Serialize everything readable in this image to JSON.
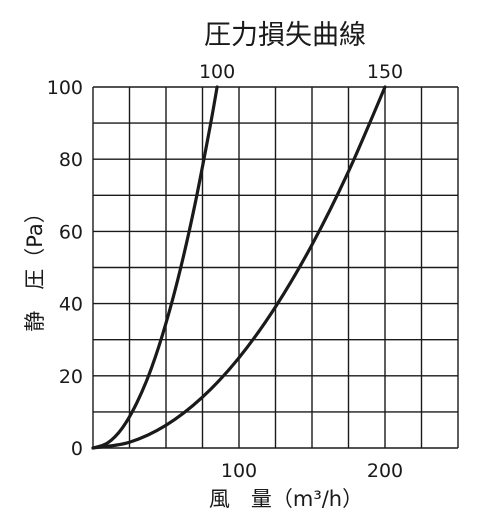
{
  "chart_data": {
    "type": "line",
    "title": "圧力損失曲線",
    "xlabel": "風　量（m³/h）",
    "ylabel": "静　圧（Pa）",
    "xlim": [
      0,
      250
    ],
    "ylim": [
      0,
      100
    ],
    "x_ticks": [
      {
        "value": 100,
        "label": "100"
      },
      {
        "value": 200,
        "label": "200"
      }
    ],
    "y_ticks": [
      {
        "value": 0,
        "label": "0"
      },
      {
        "value": 20,
        "label": "20"
      },
      {
        "value": 40,
        "label": "40"
      },
      {
        "value": 60,
        "label": "60"
      },
      {
        "value": 80,
        "label": "80"
      },
      {
        "value": 100,
        "label": "100"
      }
    ],
    "grid": true,
    "x_grid_step": 25,
    "y_grid_step": 10,
    "series": [
      {
        "name": "100",
        "x": [
          0,
          10,
          20,
          30,
          40,
          50,
          60,
          70,
          80,
          85
        ],
        "y": [
          0,
          1.4,
          5.5,
          12.5,
          22.1,
          34.6,
          49.8,
          67.8,
          88.6,
          100
        ]
      },
      {
        "name": "150",
        "x": [
          0,
          25,
          50,
          75,
          100,
          125,
          150,
          175,
          200
        ],
        "y": [
          0,
          1.6,
          6.3,
          14.1,
          25,
          39.1,
          56.3,
          76.6,
          100
        ]
      }
    ],
    "line_color": "#1a1a1a",
    "grid_color": "#1a1a1a"
  }
}
